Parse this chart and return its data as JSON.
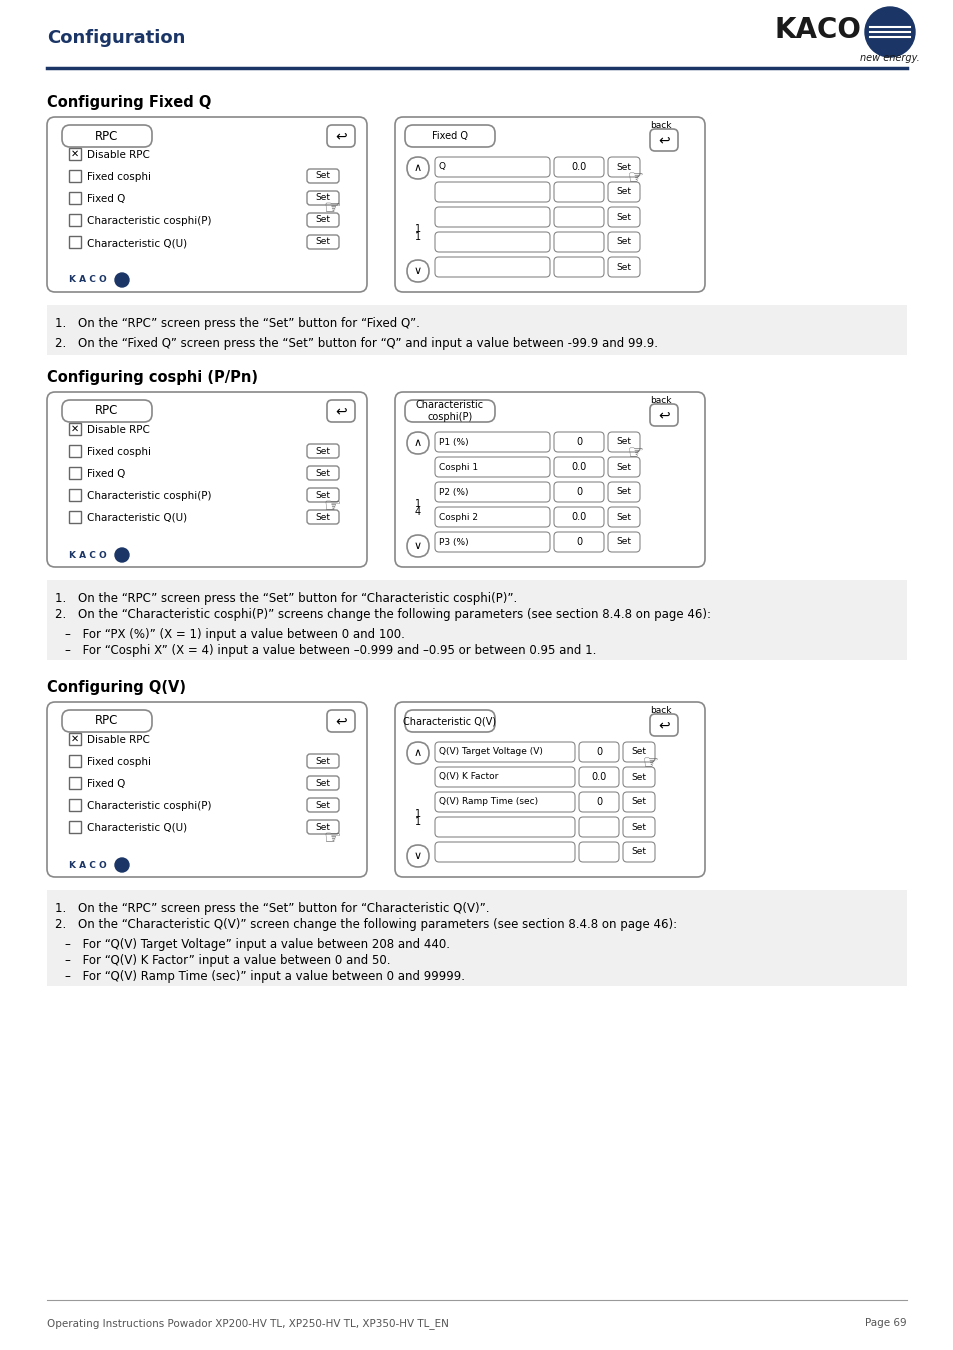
{
  "title": "Configuration",
  "kaco_text": "KACO",
  "new_energy": "new energy.",
  "footer_left": "Operating Instructions Powador XP200-HV TL, XP250-HV TL, XP350-HV TL_EN",
  "footer_right": "Page 69",
  "header_line_color": "#1a3566",
  "background_color": "#ffffff",
  "section1_title": "Configuring Fixed Q",
  "section2_title": "Configuring cosphi (P/Pn)",
  "section3_title": "Configuring Q(V)",
  "section1_instructions": [
    "1. On the “RPC” screen press the “Set” button for “Fixed Q”.",
    "2. On the “Fixed Q” screen press the “Set” button for “Q” and input a value between -99.9 and 99.9."
  ],
  "section2_instructions": [
    "1. On the “RPC” screen press the “Set” button for “Characteristic cosphi(P)”.",
    "2. On the “Characteristic cosphi(P)” screens change the following parameters (see section 8.4.8 on page 46):",
    "– For “PX (%)” (X = 1) input a value between 0 and 100.",
    "– For “Cosphi X” (X = 4) input a value between –0.999 and –0.95 or between 0.95 and 1."
  ],
  "section3_instructions": [
    "1. On the “RPC” screen press the “Set” button for “Characteristic Q(V)”.",
    "2. On the “Characteristic Q(V)” screen change the following parameters (see section 8.4.8 on page 46):",
    "– For “Q(V) Target Voltage” input a value between 208 and 440.",
    "– For “Q(V) K Factor” input a value between 0 and 50.",
    "– For “Q(V) Ramp Time (sec)” input a value between 0 and 99999."
  ],
  "rpc_menu_items": [
    "Disable RPC",
    "Fixed cosphi",
    "Fixed Q",
    "Characteristic cosphi(P)",
    "Characteristic Q(U)"
  ],
  "rpc_checkbox_checked": [
    true,
    false,
    false,
    false,
    false
  ],
  "fixed_q_rows": [
    {
      "label": "Q",
      "value": "0.0"
    },
    {
      "label": "",
      "value": ""
    },
    {
      "label": "",
      "value": ""
    },
    {
      "label": "",
      "value": ""
    },
    {
      "label": "",
      "value": ""
    }
  ],
  "cosphi_p_rows": [
    {
      "label": "P1 (%)",
      "value": "0"
    },
    {
      "label": "Cosphi 1",
      "value": "0.0"
    },
    {
      "label": "P2 (%)",
      "value": "0"
    },
    {
      "label": "Cosphi 2",
      "value": "0.0"
    },
    {
      "label": "P3 (%)",
      "value": "0"
    }
  ],
  "qv_rows": [
    {
      "label": "Q(V) Target Voltage (V)",
      "value": "0"
    },
    {
      "label": "Q(V) K Factor",
      "value": "0.0"
    },
    {
      "label": "Q(V) Ramp Time (sec)",
      "value": "0"
    },
    {
      "label": "",
      "value": ""
    },
    {
      "label": "",
      "value": ""
    }
  ],
  "panel_bg": "#f5f5f5",
  "box_color": "#dddddd",
  "text_color": "#000000",
  "title_color": "#1a3566",
  "section_bg": "#e8e8e8",
  "instruction_bg": "#f0f0f0"
}
